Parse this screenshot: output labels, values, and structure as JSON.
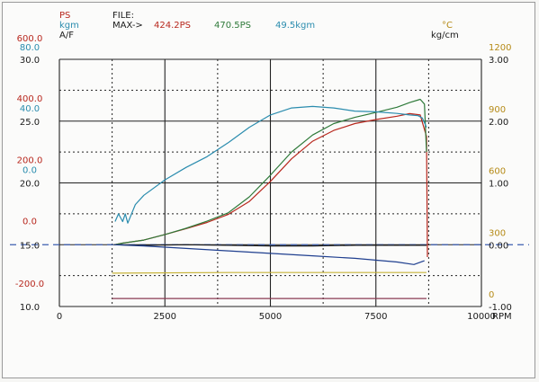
{
  "header": {
    "file_label": "FILE:",
    "max_label": "MAX->",
    "max_ps": "424.2PS",
    "max_a": "470.5PS",
    "max_kgm": "49.5kgm"
  },
  "colors": {
    "ps": "#b8281e",
    "ps_alt": "#2f7a3a",
    "kgm": "#2a8cae",
    "af": "#1a1a1a",
    "temp": "#b58a16",
    "boost": "#1a1a1a",
    "boost_trace": "#1f3f8f",
    "grid": "#222222",
    "baseline": "#3c5fb0",
    "temp_trace": "#c8b43a",
    "low_trace": "#8a3a52"
  },
  "left_units": {
    "ps": "PS",
    "kgm": "kgm",
    "af": "A/F"
  },
  "right_units": {
    "temp": "°C",
    "boost": "kg/cm"
  },
  "left_axis": {
    "ps": [
      "600.0",
      "400.0",
      "200.0",
      "0.0",
      "-200.0"
    ],
    "kgm": [
      "80.0",
      "40.0",
      "0.0"
    ],
    "af": [
      "30.0",
      "25.0",
      "20.0",
      "15.0",
      "10.0"
    ]
  },
  "right_axis": {
    "temp": [
      "1200",
      "900",
      "600",
      "300",
      "0"
    ],
    "boost": [
      "3.00",
      "2.00",
      "1.00",
      "0.00",
      "-1.00"
    ]
  },
  "chart_data": {
    "type": "line",
    "xlabel": "RPM",
    "xlim": [
      0,
      10000
    ],
    "xticks": [
      "0",
      "2500",
      "5000",
      "7500",
      "10000"
    ],
    "ps_range": [
      -200,
      600
    ],
    "series": [
      {
        "key": "ps",
        "unit": "PS",
        "color_key": "ps",
        "x": [
          1300,
          1500,
          2000,
          2500,
          3000,
          3500,
          4000,
          4500,
          5000,
          5500,
          6000,
          6500,
          7000,
          7500,
          8000,
          8300,
          8550,
          8700,
          8720
        ],
        "y": [
          0,
          5,
          15,
          33,
          52,
          72,
          98,
          140,
          205,
          278,
          335,
          370,
          392,
          405,
          416,
          424.2,
          420,
          350,
          -40
        ]
      },
      {
        "key": "ps_alt",
        "unit": "PS",
        "color_key": "ps_alt",
        "x": [
          1300,
          1500,
          2000,
          2500,
          3000,
          3500,
          4000,
          4500,
          5000,
          5500,
          6000,
          6500,
          7000,
          7500,
          8000,
          8300,
          8550,
          8650,
          8700
        ],
        "y": [
          0,
          5,
          15,
          33,
          53,
          76,
          103,
          155,
          225,
          300,
          355,
          392,
          412,
          428,
          445,
          460,
          470.5,
          455,
          300
        ]
      },
      {
        "key": "kgm",
        "unit": "kgm",
        "color_key": "kgm",
        "x": [
          1320,
          1400,
          1500,
          1560,
          1620,
          1800,
          2000,
          2500,
          3000,
          3500,
          4000,
          4500,
          5000,
          5500,
          6000,
          6500,
          7000,
          7500,
          8000,
          8300,
          8500,
          8600,
          8700
        ],
        "y": [
          7.5,
          10,
          7.5,
          10,
          7,
          13,
          16,
          21,
          25,
          28.5,
          33,
          38,
          44,
          48.5,
          49.5,
          48.5,
          46.5,
          46,
          45,
          44,
          43.5,
          42,
          38
        ]
      },
      {
        "key": "af_flat",
        "unit": "A/F",
        "color_key": "af",
        "x": [
          1300,
          2000,
          3000,
          4000,
          5000,
          6000,
          7000,
          8000,
          8700
        ],
        "y": [
          15.0,
          14.95,
          15.0,
          14.95,
          14.9,
          14.9,
          14.95,
          14.95,
          14.95
        ]
      },
      {
        "key": "boost_trace",
        "unit": "A/F",
        "color_key": "boost_trace",
        "x": [
          1300,
          2000,
          3000,
          4000,
          5000,
          6000,
          7000,
          8000,
          8400,
          8650
        ],
        "y": [
          15.0,
          14.9,
          14.7,
          14.5,
          14.3,
          14.1,
          13.9,
          13.6,
          13.4,
          13.7
        ]
      },
      {
        "key": "temp_trace",
        "unit": "A/F",
        "color_key": "temp_trace",
        "x": [
          1250,
          4000,
          8700
        ],
        "y": [
          12.7,
          12.75,
          12.75
        ]
      },
      {
        "key": "low_trace",
        "unit": "A/F",
        "color_key": "low_trace",
        "x": [
          1250,
          4000,
          8700
        ],
        "y": [
          10.65,
          10.65,
          10.65
        ]
      }
    ]
  }
}
